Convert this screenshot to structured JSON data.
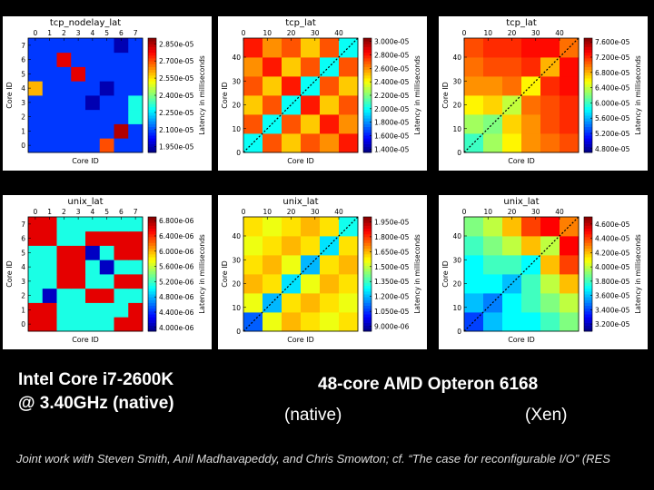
{
  "chart_data": [
    {
      "type": "heatmap",
      "title": "tcp_nodelay_lat",
      "xlabel": "Core ID",
      "ylabel": "Core ID",
      "colorbar_label": "Latency in milliseconds",
      "colormap": "jet",
      "xlim": [
        -0.5,
        7.5
      ],
      "ylim": [
        -0.5,
        7.5
      ],
      "xticks": [
        0,
        1,
        2,
        3,
        4,
        5,
        6,
        7
      ],
      "yticks": [
        0,
        1,
        2,
        3,
        4,
        5,
        6,
        7
      ],
      "clim": [
        1.9e-05,
        2.9e-05
      ],
      "cticks": [
        {
          "value": 2.85e-05,
          "label": "2.850e-05"
        },
        {
          "value": 2.7e-05,
          "label": "2.700e-05"
        },
        {
          "value": 2.55e-05,
          "label": "2.550e-05"
        },
        {
          "value": 2.4e-05,
          "label": "2.400e-05"
        },
        {
          "value": 2.25e-05,
          "label": "2.250e-05"
        },
        {
          "value": 2.1e-05,
          "label": "2.100e-05"
        },
        {
          "value": 1.95e-05,
          "label": "1.950e-05"
        }
      ],
      "z": [
        [
          2.08e-05,
          2.08e-05,
          2.08e-05,
          2.08e-05,
          2.08e-05,
          2.7e-05,
          2.08e-05,
          2.08e-05
        ],
        [
          2.08e-05,
          2.08e-05,
          2.08e-05,
          2.08e-05,
          2.08e-05,
          2.08e-05,
          2.85e-05,
          2.08e-05
        ],
        [
          2.08e-05,
          2.08e-05,
          2.08e-05,
          2.08e-05,
          2.08e-05,
          2.08e-05,
          2.08e-05,
          2.3e-05
        ],
        [
          2.08e-05,
          2.08e-05,
          2.08e-05,
          2.08e-05,
          1.95e-05,
          2.08e-05,
          2.08e-05,
          2.3e-05
        ],
        [
          2.6e-05,
          2.08e-05,
          2.08e-05,
          2.08e-05,
          2.08e-05,
          1.95e-05,
          2.08e-05,
          2.08e-05
        ],
        [
          2.08e-05,
          2.08e-05,
          2.08e-05,
          2.8e-05,
          2.08e-05,
          2.08e-05,
          2.08e-05,
          2.08e-05
        ],
        [
          2.08e-05,
          2.08e-05,
          2.8e-05,
          2.08e-05,
          2.08e-05,
          2.08e-05,
          2.08e-05,
          2.08e-05
        ],
        [
          2.08e-05,
          2.08e-05,
          2.08e-05,
          2.08e-05,
          2.08e-05,
          2.08e-05,
          1.95e-05,
          2.08e-05
        ]
      ]
    },
    {
      "type": "heatmap",
      "title": "tcp_lat",
      "xlabel": "Core ID",
      "ylabel": "Core ID",
      "colorbar_label": "Latency in milliseconds",
      "colormap": "jet",
      "xlim": [
        0,
        48
      ],
      "ylim": [
        0,
        48
      ],
      "xticks": [
        0,
        10,
        20,
        30,
        40
      ],
      "yticks": [
        0,
        10,
        20,
        30,
        40
      ],
      "clim": [
        1.35e-05,
        3.05e-05
      ],
      "cticks": [
        {
          "value": 3e-05,
          "label": "3.000e-05"
        },
        {
          "value": 2.8e-05,
          "label": "2.800e-05"
        },
        {
          "value": 2.6e-05,
          "label": "2.600e-05"
        },
        {
          "value": 2.4e-05,
          "label": "2.400e-05"
        },
        {
          "value": 2.2e-05,
          "label": "2.200e-05"
        },
        {
          "value": 2e-05,
          "label": "2.000e-05"
        },
        {
          "value": 1.8e-05,
          "label": "1.800e-05"
        },
        {
          "value": 1.6e-05,
          "label": "1.600e-05"
        },
        {
          "value": 1.4e-05,
          "label": "1.400e-05"
        }
      ],
      "z": [
        [
          2e-05,
          2.7e-05,
          2.5e-05,
          2.7e-05,
          2.6e-05,
          2.8e-05
        ],
        [
          2.7e-05,
          2e-05,
          2.7e-05,
          2.5e-05,
          2.8e-05,
          2.6e-05
        ],
        [
          2.5e-05,
          2.7e-05,
          2e-05,
          2.8e-05,
          2.5e-05,
          2.7e-05
        ],
        [
          2.7e-05,
          2.5e-05,
          2.8e-05,
          2e-05,
          2.7e-05,
          2.5e-05
        ],
        [
          2.6e-05,
          2.8e-05,
          2.5e-05,
          2.7e-05,
          2e-05,
          2.7e-05
        ],
        [
          2.8e-05,
          2.6e-05,
          2.7e-05,
          2.5e-05,
          2.7e-05,
          2e-05
        ]
      ]
    },
    {
      "type": "heatmap",
      "title": "tcp_lat",
      "xlabel": "Core ID",
      "ylabel": "Core ID",
      "colorbar_label": "Latency in milliseconds",
      "colormap": "jet",
      "xlim": [
        0,
        48
      ],
      "ylim": [
        0,
        48
      ],
      "xticks": [
        0,
        10,
        20,
        30,
        40
      ],
      "yticks": [
        0,
        10,
        20,
        30,
        40
      ],
      "clim": [
        4.7e-05,
        7.7e-05
      ],
      "cticks": [
        {
          "value": 7.6e-05,
          "label": "7.600e-05"
        },
        {
          "value": 7.2e-05,
          "label": "7.200e-05"
        },
        {
          "value": 6.8e-05,
          "label": "6.800e-05"
        },
        {
          "value": 6.4e-05,
          "label": "6.400e-05"
        },
        {
          "value": 6e-05,
          "label": "6.000e-05"
        },
        {
          "value": 5.6e-05,
          "label": "5.600e-05"
        },
        {
          "value": 5.2e-05,
          "label": "5.200e-05"
        },
        {
          "value": 4.8e-05,
          "label": "4.800e-05"
        }
      ],
      "z": [
        [
          6e-05,
          6.3e-05,
          6.6e-05,
          6.9e-05,
          7e-05,
          7.1e-05
        ],
        [
          6.3e-05,
          6.2e-05,
          6.7e-05,
          6.9e-05,
          7.1e-05,
          7.2e-05
        ],
        [
          6.6e-05,
          6.7e-05,
          6.4e-05,
          7e-05,
          7.1e-05,
          7.2e-05
        ],
        [
          6.9e-05,
          6.9e-05,
          7e-05,
          6.6e-05,
          7.2e-05,
          7.3e-05
        ],
        [
          7e-05,
          7.1e-05,
          7.1e-05,
          7.2e-05,
          6.8e-05,
          7.3e-05
        ],
        [
          7.1e-05,
          7.2e-05,
          7.2e-05,
          7.3e-05,
          7.3e-05,
          7e-05
        ]
      ]
    },
    {
      "type": "heatmap",
      "title": "unix_lat",
      "xlabel": "Core ID",
      "ylabel": "Core ID",
      "colorbar_label": "Latency in milliseconds",
      "colormap": "jet",
      "xlim": [
        -0.5,
        7.5
      ],
      "ylim": [
        -0.5,
        7.5
      ],
      "xticks": [
        0,
        1,
        2,
        3,
        4,
        5,
        6,
        7
      ],
      "yticks": [
        0,
        1,
        2,
        3,
        4,
        5,
        6,
        7
      ],
      "clim": [
        3.9e-06,
        6.9e-06
      ],
      "cticks": [
        {
          "value": 6.8e-06,
          "label": "6.800e-06"
        },
        {
          "value": 6.4e-06,
          "label": "6.400e-06"
        },
        {
          "value": 6e-06,
          "label": "6.000e-06"
        },
        {
          "value": 5.6e-06,
          "label": "5.600e-06"
        },
        {
          "value": 5.2e-06,
          "label": "5.200e-06"
        },
        {
          "value": 4.8e-06,
          "label": "4.800e-06"
        },
        {
          "value": 4.4e-06,
          "label": "4.400e-06"
        },
        {
          "value": 4e-06,
          "label": "4.000e-06"
        }
      ],
      "z": [
        [
          6.6e-06,
          6.6e-06,
          5.1e-06,
          5.1e-06,
          5.1e-06,
          5.1e-06,
          6.6e-06,
          6.6e-06
        ],
        [
          6.6e-06,
          6.6e-06,
          5.1e-06,
          5.1e-06,
          5.1e-06,
          5.1e-06,
          5.1e-06,
          6.6e-06
        ],
        [
          5.1e-06,
          4.1e-06,
          5.1e-06,
          5.1e-06,
          6.6e-06,
          6.6e-06,
          5.1e-06,
          5.1e-06
        ],
        [
          5.1e-06,
          5.1e-06,
          6.6e-06,
          6.6e-06,
          5.1e-06,
          5.1e-06,
          6.6e-06,
          6.6e-06
        ],
        [
          5.1e-06,
          5.1e-06,
          6.6e-06,
          6.6e-06,
          5.1e-06,
          4.1e-06,
          5.1e-06,
          5.1e-06
        ],
        [
          5.1e-06,
          5.1e-06,
          6.6e-06,
          6.6e-06,
          4.1e-06,
          5.1e-06,
          6.6e-06,
          6.6e-06
        ],
        [
          6.6e-06,
          6.6e-06,
          5.1e-06,
          5.1e-06,
          6.6e-06,
          6.6e-06,
          6.6e-06,
          6.6e-06
        ],
        [
          6.6e-06,
          6.6e-06,
          5.1e-06,
          5.1e-06,
          5.1e-06,
          5.1e-06,
          5.1e-06,
          5.1e-06
        ]
      ]
    },
    {
      "type": "heatmap",
      "title": "unix_lat",
      "xlabel": "Core ID",
      "ylabel": "Core ID",
      "colorbar_label": "Latency in milliseconds",
      "colormap": "jet",
      "xlim": [
        0,
        48
      ],
      "ylim": [
        0,
        48
      ],
      "xticks": [
        0,
        10,
        20,
        30,
        40
      ],
      "yticks": [
        0,
        10,
        20,
        30,
        40
      ],
      "clim": [
        8.5e-06,
        2e-05
      ],
      "cticks": [
        {
          "value": 1.95e-05,
          "label": "1.950e-05"
        },
        {
          "value": 1.8e-05,
          "label": "1.800e-05"
        },
        {
          "value": 1.65e-05,
          "label": "1.650e-05"
        },
        {
          "value": 1.5e-05,
          "label": "1.500e-05"
        },
        {
          "value": 1.35e-05,
          "label": "1.350e-05"
        },
        {
          "value": 1.2e-05,
          "label": "1.200e-05"
        },
        {
          "value": 1.05e-05,
          "label": "1.050e-05"
        },
        {
          "value": 9e-06,
          "label": "9.000e-06"
        }
      ],
      "z": [
        [
          1.1e-05,
          1.55e-05,
          1.65e-05,
          1.6e-05,
          1.55e-05,
          1.6e-05
        ],
        [
          1.55e-05,
          1.2e-05,
          1.6e-05,
          1.65e-05,
          1.6e-05,
          1.55e-05
        ],
        [
          1.65e-05,
          1.6e-05,
          1.25e-05,
          1.55e-05,
          1.65e-05,
          1.6e-05
        ],
        [
          1.6e-05,
          1.65e-05,
          1.55e-05,
          1.2e-05,
          1.6e-05,
          1.65e-05
        ],
        [
          1.55e-05,
          1.6e-05,
          1.65e-05,
          1.6e-05,
          1.25e-05,
          1.6e-05
        ],
        [
          1.6e-05,
          1.55e-05,
          1.6e-05,
          1.65e-05,
          1.6e-05,
          1.3e-05
        ]
      ]
    },
    {
      "type": "heatmap",
      "title": "unix_lat",
      "xlabel": "Core ID",
      "ylabel": "Core ID",
      "colorbar_label": "Latency in milliseconds",
      "colormap": "jet",
      "xlim": [
        0,
        48
      ],
      "ylim": [
        0,
        48
      ],
      "xticks": [
        0,
        10,
        20,
        30,
        40
      ],
      "yticks": [
        0,
        10,
        20,
        30,
        40
      ],
      "clim": [
        3.1e-05,
        4.7e-05
      ],
      "cticks": [
        {
          "value": 4.6e-05,
          "label": "4.600e-05"
        },
        {
          "value": 4.4e-05,
          "label": "4.400e-05"
        },
        {
          "value": 4.2e-05,
          "label": "4.200e-05"
        },
        {
          "value": 4e-05,
          "label": "4.000e-05"
        },
        {
          "value": 3.8e-05,
          "label": "3.800e-05"
        },
        {
          "value": 3.6e-05,
          "label": "3.600e-05"
        },
        {
          "value": 3.4e-05,
          "label": "3.400e-05"
        },
        {
          "value": 3.2e-05,
          "label": "3.200e-05"
        }
      ],
      "z": [
        [
          3.4e-05,
          3.6e-05,
          3.7e-05,
          3.7e-05,
          3.8e-05,
          3.9e-05
        ],
        [
          3.6e-05,
          3.5e-05,
          3.7e-05,
          3.8e-05,
          3.9e-05,
          4e-05
        ],
        [
          3.7e-05,
          3.7e-05,
          3.6e-05,
          3.8e-05,
          4e-05,
          4.2e-05
        ],
        [
          3.7e-05,
          3.8e-05,
          3.8e-05,
          3.7e-05,
          4.2e-05,
          4.4e-05
        ],
        [
          3.8e-05,
          3.9e-05,
          4e-05,
          4.2e-05,
          4e-05,
          4.5e-05
        ],
        [
          3.9e-05,
          4e-05,
          4.2e-05,
          4.4e-05,
          4.5e-05,
          4.3e-05
        ]
      ]
    }
  ],
  "captions": {
    "intel_line1": "Intel Core i7-2600K",
    "intel_line2": "@ 3.40GHz  (native)",
    "amd_title": "48-core AMD Opteron 6168",
    "amd_native": "(native)",
    "amd_xen": "(Xen)"
  },
  "footer": "Joint work with Steven Smith, Anil Madhavapeddy, and Chris Smowton; cf. “The case for reconfigurable I/O” (RES"
}
